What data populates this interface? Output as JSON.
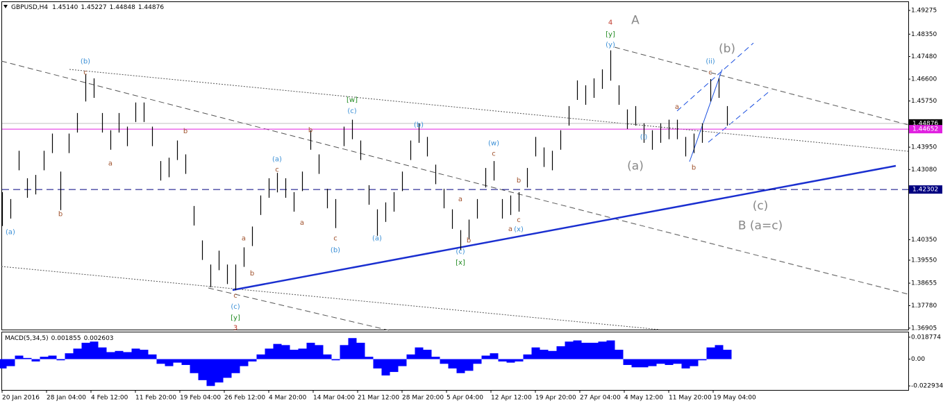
{
  "chart_data": [
    {
      "type": "bar-ohlc",
      "header": {
        "symbol": "GBPUSD,H4",
        "ohlc": [
          {
            "value": 1.4514,
            "label": "1.45140"
          },
          1.45227,
          1.44848,
          1.44876
        ]
      },
      "high": [
        1.422,
        1.4193,
        1.4381,
        1.4274,
        1.4287,
        1.4381,
        1.4448,
        1.43,
        1.4448,
        1.4528,
        1.468,
        1.4663,
        1.4528,
        1.4461,
        1.4528,
        1.4475,
        1.4569,
        1.4569,
        1.4475,
        1.4341,
        1.4354,
        1.4421,
        1.4367,
        1.4166,
        1.4032,
        1.3938,
        1.3992,
        1.3938,
        1.3938,
        1.4005,
        1.4086,
        1.4207,
        1.4274,
        1.4295,
        1.4274,
        1.422,
        1.43,
        1.4461,
        1.4367,
        1.4233,
        1.4193,
        1.4475,
        1.4502,
        1.4421,
        1.4247,
        1.4153,
        1.418,
        1.422,
        1.43,
        1.4421,
        1.4488,
        1.4435,
        1.4327,
        1.4233,
        1.4153,
        1.4072,
        1.4113,
        1.4193,
        1.4314,
        1.4341,
        1.4193,
        1.4207,
        1.422,
        1.4314,
        1.4435,
        1.4394,
        1.4381,
        1.4461,
        1.4555,
        1.4655,
        1.4636,
        1.4663,
        1.4698,
        1.4772,
        1.4636,
        1.4542,
        1.4555,
        1.4488,
        1.4461,
        1.4488,
        1.4502,
        1.4502,
        1.4435,
        1.4448,
        1.4488,
        1.466,
        1.4663,
        1.4555
      ],
      "low": [
        1.4088,
        1.4117,
        1.4305,
        1.4198,
        1.4211,
        1.4305,
        1.4372,
        1.415,
        1.4372,
        1.4452,
        1.4573,
        1.4587,
        1.4452,
        1.4385,
        1.4452,
        1.4399,
        1.4493,
        1.4493,
        1.4399,
        1.4265,
        1.4278,
        1.4345,
        1.4291,
        1.409,
        1.3956,
        1.385,
        1.3916,
        1.3862,
        1.3838,
        1.3929,
        1.401,
        1.4131,
        1.4198,
        1.4219,
        1.4198,
        1.4144,
        1.4224,
        1.4385,
        1.4291,
        1.4157,
        1.408,
        1.4399,
        1.4426,
        1.4345,
        1.4171,
        1.405,
        1.4104,
        1.4144,
        1.4224,
        1.4345,
        1.4412,
        1.4359,
        1.4251,
        1.4157,
        1.4077,
        1.3995,
        1.4037,
        1.4117,
        1.4238,
        1.4265,
        1.4117,
        1.4131,
        1.4144,
        1.4238,
        1.4359,
        1.4318,
        1.4305,
        1.4385,
        1.4479,
        1.4579,
        1.456,
        1.4587,
        1.4622,
        1.4654,
        1.456,
        1.4466,
        1.4479,
        1.4412,
        1.4385,
        1.4412,
        1.4426,
        1.4426,
        1.4359,
        1.4372,
        1.4412,
        1.4573,
        1.4587,
        1.4479
      ],
      "color": "#000000",
      "ylim": [
        1.3682,
        1.496
      ],
      "yticks": [
        1.49275,
        {
          "value": 1.4835,
          "label": "1.48350"
        },
        {
          "value": 1.4748,
          "label": "1.47480"
        },
        {
          "value": 1.466,
          "label": "1.46600"
        },
        {
          "value": 1.4575,
          "label": "1.45750"
        },
        {
          "value": 1.4395,
          "label": "1.43950"
        },
        {
          "value": 1.4308,
          "label": "1.43080"
        },
        {
          "value": 1.4035,
          "label": "1.40350"
        },
        {
          "value": 1.3955,
          "label": "1.39550"
        },
        1.38655,
        {
          "value": 1.3778,
          "label": "1.37780"
        },
        1.36905
      ],
      "levels": [
        {
          "price": 1.44876,
          "color": "#000000"
        },
        {
          "price": 1.44652,
          "color": "#e020e0"
        },
        {
          "price": 1.42302,
          "color": "#000080"
        }
      ],
      "x_labels": [
        "20 Jan 2016",
        "28 Jan 04:00",
        "4 Feb 12:00",
        "11 Feb 20:00",
        "19 Feb 04:00",
        "26 Feb 12:00",
        "4 Mar 20:00",
        "14 Mar 04:00",
        "21 Mar 12:00",
        "28 Mar 20:00",
        "5 Apr 04:00",
        "12 Apr 12:00",
        "19 Apr 20:00",
        "27 Apr 04:00",
        "4 May 12:00",
        "11 May 20:00",
        "19 May 04:00"
      ],
      "annotations": [
        {
          "text": "4",
          "bar": 73,
          "price": 1.488,
          "color": "#c0392b"
        },
        {
          "text": "A",
          "bar": 76,
          "price": 1.4888,
          "color": "#888888",
          "large": true
        },
        {
          "text": "[y]",
          "bar": 73,
          "price": 1.4834,
          "color": "#228b22"
        },
        {
          "text": "(y)",
          "bar": 73,
          "price": 1.4794,
          "color": "#3a8fd6"
        },
        {
          "text": "(b)",
          "bar": 87,
          "price": 1.4778,
          "color": "#888888",
          "large": true
        },
        {
          "text": "(ii)",
          "bar": 85,
          "price": 1.4729,
          "color": "#3a8fd6"
        },
        {
          "text": "(a)",
          "bar": 76,
          "price": 1.4321,
          "color": "#888888",
          "large": true
        },
        {
          "text": "(i)",
          "bar": 77,
          "price": 1.4434,
          "color": "#3a8fd6"
        },
        {
          "text": "(c)",
          "bar": 91,
          "price": 1.4166,
          "color": "#888888",
          "large": true
        },
        {
          "text": "B (a=c)",
          "bar": 91,
          "price": 1.4088,
          "color": "#888888",
          "large": true
        },
        {
          "text": "[w]",
          "bar": 42,
          "price": 1.4579,
          "color": "#228b22"
        },
        {
          "text": "(c)",
          "bar": 42,
          "price": 1.4536,
          "color": "#3a8fd6"
        },
        {
          "text": "(w)",
          "bar": 59,
          "price": 1.441,
          "color": "#3a8fd6"
        },
        {
          "text": "[x]",
          "bar": 55,
          "price": 1.3946,
          "color": "#228b22"
        },
        {
          "text": "(c)",
          "bar": 55,
          "price": 1.3989,
          "color": "#3a8fd6"
        },
        {
          "text": "(x)",
          "bar": 62,
          "price": 1.4075,
          "color": "#3a8fd6"
        },
        {
          "text": "(c)",
          "bar": 28,
          "price": 1.3774,
          "color": "#3a8fd6"
        },
        {
          "text": "[y]",
          "bar": 28,
          "price": 1.3731,
          "color": "#228b22"
        },
        {
          "text": "3",
          "bar": 28,
          "price": 1.3691,
          "color": "#c0392b"
        },
        {
          "text": "(b)",
          "bar": 10,
          "price": 1.4729,
          "color": "#3a8fd6"
        },
        {
          "text": "(a)",
          "bar": 1,
          "price": 1.4064,
          "color": "#3a8fd6"
        },
        {
          "text": "(a)",
          "bar": 33,
          "price": 1.4348,
          "color": "#3a8fd6"
        },
        {
          "text": "(b)",
          "bar": 40,
          "price": 1.3994,
          "color": "#3a8fd6"
        },
        {
          "text": "(a)",
          "bar": 45,
          "price": 1.404,
          "color": "#3a8fd6"
        },
        {
          "text": "(b)",
          "bar": 50,
          "price": 1.4482,
          "color": "#3a8fd6"
        },
        {
          "text": "c",
          "bar": 10,
          "price": 1.4686,
          "color": "#a0522d"
        },
        {
          "text": "a",
          "bar": 13,
          "price": 1.4332,
          "color": "#a0522d"
        },
        {
          "text": "b",
          "bar": 22,
          "price": 1.4458,
          "color": "#a0522d"
        },
        {
          "text": "b",
          "bar": 7,
          "price": 1.4134,
          "color": "#a0522d"
        },
        {
          "text": "a",
          "bar": 29,
          "price": 1.404,
          "color": "#a0522d"
        },
        {
          "text": "b",
          "bar": 30,
          "price": 1.3903,
          "color": "#a0522d"
        },
        {
          "text": "c",
          "bar": 28,
          "price": 1.3817,
          "color": "#a0522d"
        },
        {
          "text": "c",
          "bar": 33,
          "price": 1.4308,
          "color": "#a0522d"
        },
        {
          "text": "a",
          "bar": 36,
          "price": 1.4101,
          "color": "#a0522d"
        },
        {
          "text": "b",
          "bar": 37,
          "price": 1.4461,
          "color": "#a0522d"
        },
        {
          "text": "c",
          "bar": 40,
          "price": 1.404,
          "color": "#a0522d"
        },
        {
          "text": "c",
          "bar": 59,
          "price": 1.437,
          "color": "#a0522d"
        },
        {
          "text": "a",
          "bar": 55,
          "price": 1.4193,
          "color": "#a0522d"
        },
        {
          "text": "b",
          "bar": 56,
          "price": 1.4032,
          "color": "#a0522d"
        },
        {
          "text": "a",
          "bar": 61,
          "price": 1.4077,
          "color": "#a0522d"
        },
        {
          "text": "b",
          "bar": 62,
          "price": 1.4265,
          "color": "#a0522d"
        },
        {
          "text": "c",
          "bar": 62,
          "price": 1.4112,
          "color": "#a0522d"
        },
        {
          "text": "a",
          "bar": 81,
          "price": 1.4552,
          "color": "#a0522d"
        },
        {
          "text": "b",
          "bar": 83,
          "price": 1.4316,
          "color": "#a0522d"
        },
        {
          "text": "c",
          "bar": 85,
          "price": 1.4686,
          "color": "#a0522d"
        }
      ]
    },
    {
      "type": "histogram-macd",
      "title": "MACD(5,34,5)",
      "readout": [
        0.001855,
        0.002603
      ],
      "color": "#0000ff",
      "values": [
        -0.008,
        -0.006,
        0.003,
        0.001,
        -0.002,
        0.002,
        0.003,
        -0.001,
        0.005,
        0.009,
        0.014,
        0.015,
        0.01,
        0.006,
        0.007,
        0.006,
        0.009,
        0.008,
        0.004,
        -0.004,
        -0.006,
        -0.003,
        -0.005,
        -0.012,
        -0.018,
        -0.023,
        -0.02,
        -0.016,
        -0.012,
        -0.006,
        -0.002,
        0.004,
        0.009,
        0.013,
        0.012,
        0.008,
        0.009,
        0.014,
        0.012,
        0.004,
        -0.001,
        0.012,
        0.018,
        0.014,
        0.002,
        -0.008,
        -0.014,
        -0.011,
        -0.006,
        0.004,
        0.01,
        0.008,
        0.002,
        -0.004,
        -0.008,
        -0.012,
        -0.01,
        -0.004,
        0.003,
        0.005,
        -0.002,
        -0.003,
        -0.002,
        0.004,
        0.01,
        0.008,
        0.007,
        0.011,
        0.015,
        0.016,
        0.014,
        0.014,
        0.015,
        0.016,
        0.008,
        -0.005,
        -0.007,
        -0.007,
        -0.006,
        -0.004,
        -0.005,
        -0.004,
        -0.008,
        -0.006,
        -0.001,
        0.01,
        0.012,
        0.008
      ],
      "ylim": [
        -0.0264,
        0.0229
      ],
      "yticks": [
        0.018774,
        {
          "value": 0,
          "label": "0.00"
        },
        -0.022934
      ]
    }
  ]
}
